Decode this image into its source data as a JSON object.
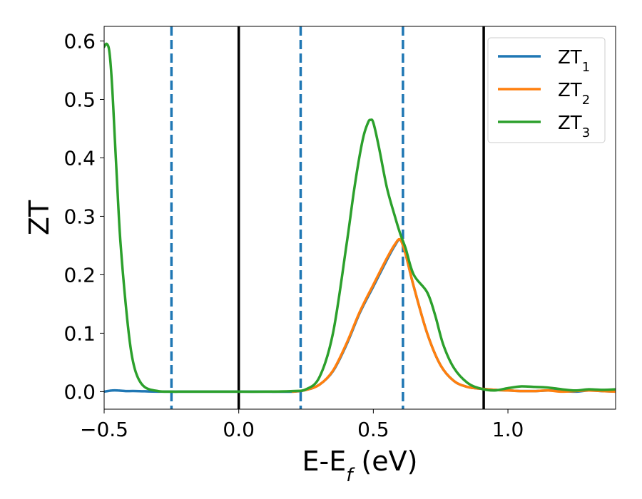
{
  "chart_data": {
    "type": "line",
    "xlabel": "E-E",
    "xlabel_sub": "f",
    "xlabel_unit": "(eV)",
    "ylabel": "ZT",
    "xlim": [
      -0.5,
      1.4
    ],
    "ylim": [
      -0.03,
      0.625
    ],
    "x_ticks": [
      -0.5,
      0.0,
      0.5,
      1.0
    ],
    "x_tick_labels": [
      "−0.5",
      "0.0",
      "0.5",
      "1.0"
    ],
    "y_ticks": [
      0.0,
      0.1,
      0.2,
      0.3,
      0.4,
      0.5,
      0.6
    ],
    "y_tick_labels": [
      "0.0",
      "0.1",
      "0.2",
      "0.3",
      "0.4",
      "0.5",
      "0.6"
    ],
    "grid": false,
    "legend_position": "top-right",
    "vertical_lines": [
      {
        "x": -0.25,
        "style": "dashed",
        "color": "#1f77b4"
      },
      {
        "x": 0.0,
        "style": "solid",
        "color": "#000000"
      },
      {
        "x": 0.23,
        "style": "dashed",
        "color": "#1f77b4"
      },
      {
        "x": 0.61,
        "style": "dashed",
        "color": "#1f77b4"
      },
      {
        "x": 0.91,
        "style": "solid",
        "color": "#000000"
      }
    ],
    "series": [
      {
        "name": "ZT",
        "sub": "1",
        "color": "#1f77b4",
        "x": [
          -0.5,
          -0.47,
          -0.45,
          -0.42,
          -0.38,
          -0.3,
          -0.2,
          -0.1,
          0.0,
          0.1,
          0.2,
          0.25,
          0.3,
          0.35,
          0.4,
          0.45,
          0.5,
          0.55,
          0.58,
          0.6,
          0.62,
          0.65,
          0.7,
          0.75,
          0.8,
          0.85,
          0.9,
          0.95,
          1.0,
          1.05,
          1.1,
          1.15,
          1.2,
          1.25,
          1.3,
          1.35,
          1.4
        ],
        "y": [
          0.0,
          0.002,
          0.002,
          0.001,
          0.001,
          0.0,
          0.0,
          0.0,
          0.0,
          0.0,
          0.0,
          0.003,
          0.012,
          0.035,
          0.08,
          0.135,
          0.18,
          0.225,
          0.25,
          0.26,
          0.235,
          0.18,
          0.1,
          0.045,
          0.018,
          0.008,
          0.005,
          0.003,
          0.002,
          0.001,
          0.001,
          0.002,
          0.001,
          0.0,
          0.002,
          0.001,
          0.0
        ]
      },
      {
        "name": "ZT",
        "sub": "2",
        "color": "#ff7f0e",
        "x": [
          0.2,
          0.25,
          0.3,
          0.35,
          0.4,
          0.45,
          0.5,
          0.55,
          0.58,
          0.6,
          0.62,
          0.65,
          0.7,
          0.75,
          0.8,
          0.85,
          0.9,
          0.95,
          1.0,
          1.05,
          1.1,
          1.15,
          1.2,
          1.25,
          1.3,
          1.35,
          1.4
        ],
        "y": [
          0.0,
          0.003,
          0.012,
          0.036,
          0.082,
          0.137,
          0.183,
          0.228,
          0.252,
          0.26,
          0.235,
          0.18,
          0.1,
          0.045,
          0.018,
          0.008,
          0.005,
          0.003,
          0.002,
          0.001,
          0.001,
          0.002,
          0.0,
          0.001,
          0.002,
          0.001,
          0.0
        ]
      },
      {
        "name": "ZT",
        "sub": "3",
        "color": "#2ca02c",
        "x": [
          -0.5,
          -0.49,
          -0.48,
          -0.47,
          -0.46,
          -0.45,
          -0.44,
          -0.42,
          -0.4,
          -0.38,
          -0.35,
          -0.3,
          -0.25,
          -0.2,
          -0.1,
          0.0,
          0.1,
          0.2,
          0.25,
          0.3,
          0.35,
          0.4,
          0.43,
          0.46,
          0.48,
          0.49,
          0.5,
          0.52,
          0.55,
          0.58,
          0.6,
          0.62,
          0.65,
          0.7,
          0.73,
          0.76,
          0.8,
          0.85,
          0.9,
          0.95,
          1.0,
          1.05,
          1.1,
          1.15,
          1.2,
          1.25,
          1.3,
          1.35,
          1.4
        ],
        "y": [
          0.59,
          0.595,
          0.58,
          0.52,
          0.43,
          0.34,
          0.26,
          0.15,
          0.07,
          0.03,
          0.008,
          0.001,
          0.0,
          0.0,
          0.0,
          0.0,
          0.0,
          0.001,
          0.004,
          0.025,
          0.1,
          0.25,
          0.35,
          0.43,
          0.46,
          0.465,
          0.46,
          0.42,
          0.35,
          0.3,
          0.27,
          0.245,
          0.2,
          0.17,
          0.13,
          0.08,
          0.04,
          0.015,
          0.005,
          0.002,
          0.006,
          0.009,
          0.008,
          0.007,
          0.004,
          0.002,
          0.004,
          0.003,
          0.004
        ]
      }
    ]
  }
}
